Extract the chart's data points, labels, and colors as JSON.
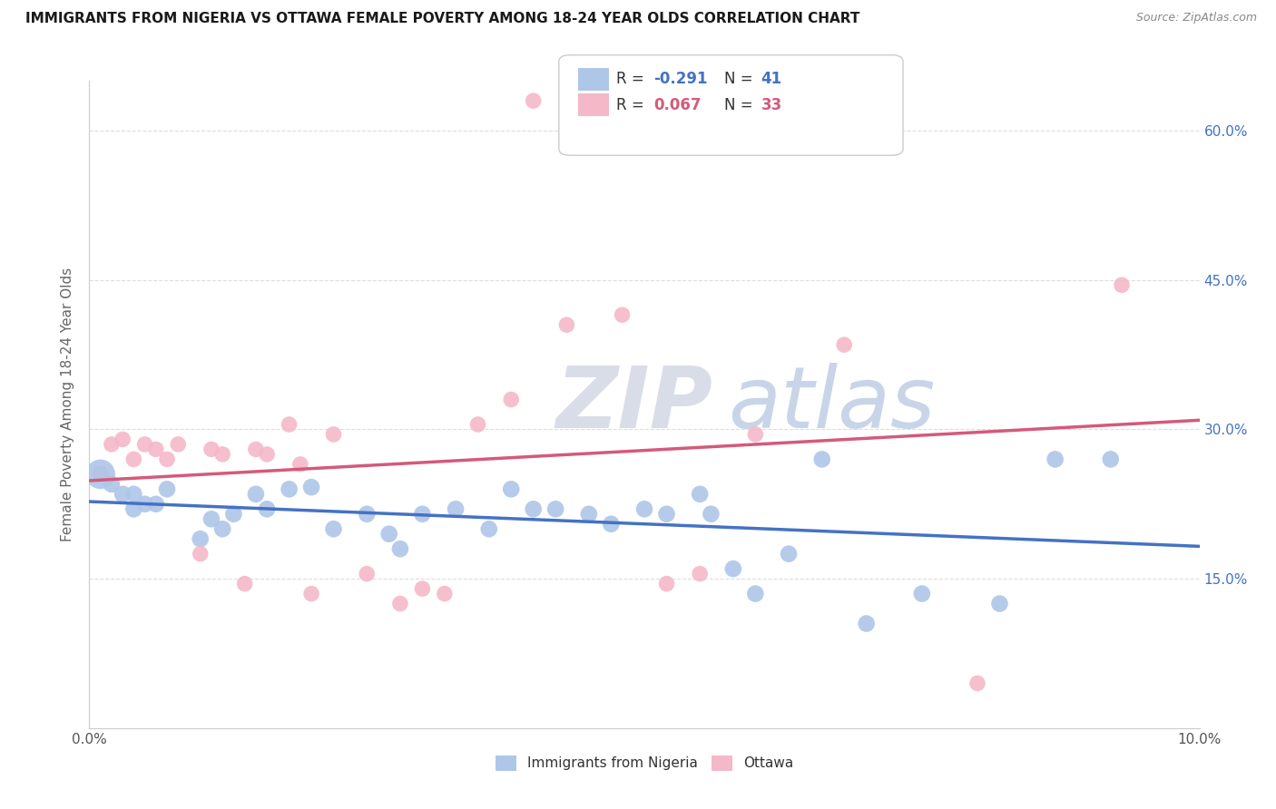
{
  "title": "IMMIGRANTS FROM NIGERIA VS OTTAWA FEMALE POVERTY AMONG 18-24 YEAR OLDS CORRELATION CHART",
  "source": "Source: ZipAtlas.com",
  "ylabel": "Female Poverty Among 18-24 Year Olds",
  "xlim": [
    0.0,
    0.1
  ],
  "ylim": [
    0.0,
    0.65
  ],
  "yticks": [
    0.0,
    0.15,
    0.3,
    0.45,
    0.6
  ],
  "legend_label1": "Immigrants from Nigeria",
  "legend_label2": "Ottawa",
  "legend_R1": "-0.291",
  "legend_N1": "41",
  "legend_R2": "0.067",
  "legend_N2": "33",
  "blue_color": "#aec6e8",
  "pink_color": "#f5b8c8",
  "blue_line_color": "#4472c4",
  "pink_line_color": "#d45a7a",
  "watermark_zip": "ZIP",
  "watermark_atlas": "atlas",
  "blue_x": [
    0.001,
    0.002,
    0.003,
    0.004,
    0.004,
    0.005,
    0.006,
    0.007,
    0.01,
    0.011,
    0.012,
    0.013,
    0.015,
    0.016,
    0.018,
    0.02,
    0.022,
    0.025,
    0.027,
    0.028,
    0.03,
    0.033,
    0.036,
    0.038,
    0.04,
    0.042,
    0.045,
    0.047,
    0.05,
    0.052,
    0.055,
    0.056,
    0.058,
    0.06,
    0.063,
    0.066,
    0.07,
    0.075,
    0.082,
    0.087,
    0.092
  ],
  "blue_y": [
    0.255,
    0.245,
    0.235,
    0.22,
    0.235,
    0.225,
    0.225,
    0.24,
    0.19,
    0.21,
    0.2,
    0.215,
    0.235,
    0.22,
    0.24,
    0.242,
    0.2,
    0.215,
    0.195,
    0.18,
    0.215,
    0.22,
    0.2,
    0.24,
    0.22,
    0.22,
    0.215,
    0.205,
    0.22,
    0.215,
    0.235,
    0.215,
    0.16,
    0.135,
    0.175,
    0.27,
    0.105,
    0.135,
    0.125,
    0.27,
    0.27
  ],
  "pink_x": [
    0.001,
    0.002,
    0.003,
    0.004,
    0.005,
    0.006,
    0.007,
    0.008,
    0.01,
    0.011,
    0.012,
    0.014,
    0.015,
    0.016,
    0.018,
    0.019,
    0.02,
    0.022,
    0.025,
    0.028,
    0.03,
    0.032,
    0.035,
    0.038,
    0.04,
    0.043,
    0.048,
    0.052,
    0.055,
    0.06,
    0.068,
    0.08,
    0.093
  ],
  "pink_y": [
    0.255,
    0.285,
    0.29,
    0.27,
    0.285,
    0.28,
    0.27,
    0.285,
    0.175,
    0.28,
    0.275,
    0.145,
    0.28,
    0.275,
    0.305,
    0.265,
    0.135,
    0.295,
    0.155,
    0.125,
    0.14,
    0.135,
    0.305,
    0.33,
    0.63,
    0.405,
    0.415,
    0.145,
    0.155,
    0.295,
    0.385,
    0.045,
    0.445
  ],
  "blue_intercept": 0.245,
  "blue_slope": -1.05,
  "pink_intercept": 0.235,
  "pink_slope": 0.55
}
